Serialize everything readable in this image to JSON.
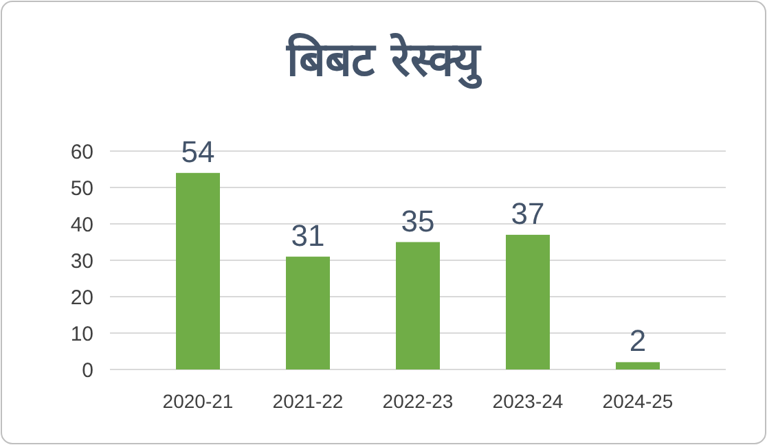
{
  "chart_data": {
    "type": "bar",
    "title": "बिबट रेस्क्यु",
    "categories": [
      "2020-21",
      "2021-22",
      "2022-23",
      "2023-24",
      "2024-25"
    ],
    "values": [
      54,
      31,
      35,
      37,
      2
    ],
    "color": "#70ad47",
    "ylim": [
      0,
      60
    ],
    "yticks": [
      0,
      10,
      20,
      30,
      40,
      50,
      60
    ],
    "grid": "y",
    "data_labels": true
  }
}
